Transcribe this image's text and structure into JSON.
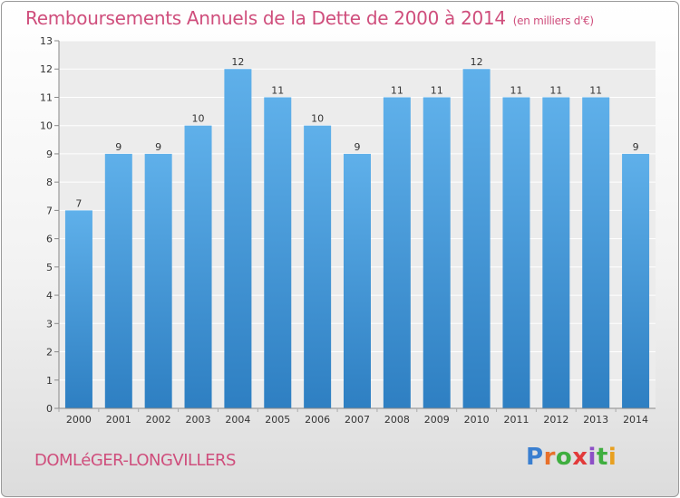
{
  "title": "Remboursements Annuels de la Dette de 2000 à 2014",
  "unit": "(en milliers d'€)",
  "city": "DOMLéGER-LONGVILLERS",
  "logo": {
    "letters": [
      "P",
      "r",
      "o",
      "x",
      "i",
      "t",
      "i"
    ],
    "colors": [
      "#3a7fd0",
      "#e8702a",
      "#3fae3f",
      "#e23a3a",
      "#8d4fc6",
      "#3fae3f",
      "#e8a020"
    ]
  },
  "colors": {
    "bar_top": "#5fb0ea",
    "bar_bottom": "#2e7fc2",
    "title": "#cf4e7c"
  },
  "chart_data": {
    "type": "bar",
    "title": "Remboursements Annuels de la Dette de 2000 à 2014",
    "xlabel": "",
    "ylabel": "",
    "categories": [
      "2000",
      "2001",
      "2002",
      "2003",
      "2004",
      "2005",
      "2006",
      "2007",
      "2008",
      "2009",
      "2010",
      "2011",
      "2012",
      "2013",
      "2014"
    ],
    "values": [
      7,
      9,
      9,
      10,
      12,
      11,
      10,
      9,
      11,
      11,
      12,
      11,
      11,
      11,
      9
    ],
    "ylim": [
      0,
      13
    ],
    "yticks": [
      0,
      1,
      2,
      3,
      4,
      5,
      6,
      7,
      8,
      9,
      10,
      11,
      12,
      13
    ],
    "grid": true
  }
}
